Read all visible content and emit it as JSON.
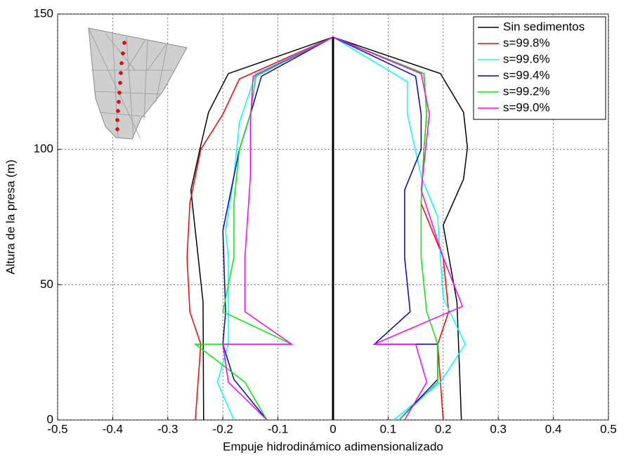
{
  "chart_data": {
    "type": "line",
    "xlabel": "Empuje hidrodinámico adimensionalizado",
    "ylabel": "Altura de la presa (m)",
    "xlim": [
      -0.5,
      0.5
    ],
    "xticks": [
      -0.5,
      -0.4,
      -0.3,
      -0.2,
      -0.1,
      0,
      0.1,
      0.2,
      0.3,
      0.4,
      0.5
    ],
    "ylim": [
      0,
      150
    ],
    "yticks": [
      0,
      50,
      100,
      150
    ],
    "grid": true,
    "legend": "upper right",
    "series": [
      {
        "name": "Sin sedimentos",
        "color": "#000000",
        "x": [
          -0.235,
          -0.236,
          -0.258,
          -0.241,
          -0.226,
          -0.19,
          0,
          null,
          0,
          0.195,
          0.237,
          0.244,
          0.237,
          0.2,
          0.225,
          0.233
        ],
        "values": [
          0,
          43.6,
          85,
          100.7,
          113.7,
          128,
          141.5,
          null,
          141.5,
          128,
          113.7,
          100.7,
          89,
          72,
          43.6,
          0
        ]
      },
      {
        "name": "s=99.8%",
        "color": "#ff0000",
        "x": [
          -0.25,
          -0.24,
          -0.26,
          -0.265,
          -0.26,
          -0.24,
          -0.2,
          -0.17,
          0,
          null,
          0,
          0.165,
          0.17,
          0.165,
          0.16,
          0.2,
          0.21,
          0.19,
          0.195,
          0.2
        ],
        "values": [
          0,
          28,
          40,
          60,
          80,
          100,
          113,
          126,
          141.5,
          null,
          141.5,
          128,
          113,
          100,
          80,
          60,
          40,
          28,
          14,
          0
        ]
      },
      {
        "name": "s=99.6%",
        "color": "#00ffff",
        "x": [
          -0.18,
          -0.21,
          -0.19,
          -0.19,
          -0.19,
          -0.195,
          -0.18,
          -0.17,
          -0.14,
          0,
          null,
          0,
          0.135,
          0.135,
          0.16,
          0.19,
          0.195,
          0.2,
          0.24,
          0.195,
          0.11
        ],
        "values": [
          0,
          14,
          28,
          40,
          60,
          70,
          90,
          110,
          128,
          141.5,
          null,
          141.5,
          125,
          113,
          90,
          75,
          60,
          45,
          28,
          14,
          0
        ]
      },
      {
        "name": "s=99.4%",
        "color": "#0000cc",
        "x": [
          -0.12,
          -0.18,
          -0.2,
          -0.195,
          -0.2,
          -0.17,
          -0.15,
          -0.13,
          0,
          null,
          0,
          0.15,
          0.16,
          0.16,
          0.13,
          0.13,
          0.14,
          0.075,
          0.19,
          0.19,
          0.12
        ],
        "values": [
          0,
          15,
          28,
          40,
          70,
          100,
          113,
          127,
          141.5,
          null,
          141.5,
          127,
          113,
          100,
          85,
          60,
          40,
          28,
          28,
          15,
          0
        ]
      },
      {
        "name": "s=99.2%",
        "color": "#00ee00",
        "x": [
          -0.12,
          -0.16,
          -0.25,
          -0.075,
          -0.2,
          -0.18,
          -0.18,
          -0.17,
          -0.15,
          -0.14,
          0,
          null,
          0,
          0.165,
          0.17,
          0.165,
          0.16,
          0.16,
          0.17,
          0.19,
          0.19,
          0.12
        ],
        "values": [
          0,
          14,
          28,
          28,
          40,
          60,
          80,
          100,
          113,
          127,
          141.5,
          null,
          141.5,
          128,
          113,
          100,
          80,
          60,
          40,
          28,
          14,
          0
        ]
      },
      {
        "name": "s=99.0%",
        "color": "#ff00ff",
        "x": [
          -0.12,
          -0.19,
          -0.2,
          -0.075,
          -0.16,
          -0.16,
          -0.15,
          -0.15,
          -0.145,
          0,
          null,
          0,
          0.16,
          0.175,
          0.16,
          0.2,
          0.235,
          0.075,
          0.15,
          0.17,
          0.13
        ],
        "values": [
          0,
          14,
          28,
          28,
          40,
          60,
          90,
          110,
          127,
          141.5,
          null,
          141.5,
          128,
          113,
          85,
          60,
          42,
          28,
          28,
          14,
          0
        ]
      }
    ]
  }
}
